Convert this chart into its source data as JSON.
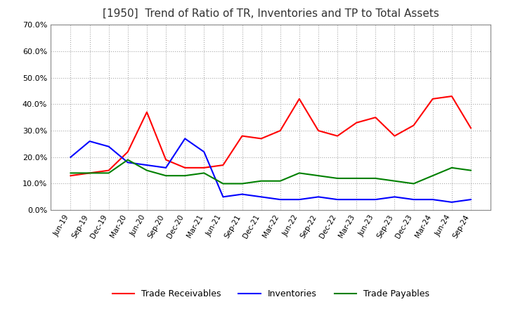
{
  "title": "[1950]  Trend of Ratio of TR, Inventories and TP to Total Assets",
  "x_labels": [
    "Jun-19",
    "Sep-19",
    "Dec-19",
    "Mar-20",
    "Jun-20",
    "Sep-20",
    "Dec-20",
    "Mar-21",
    "Jun-21",
    "Sep-21",
    "Dec-21",
    "Mar-22",
    "Jun-22",
    "Sep-22",
    "Dec-22",
    "Mar-23",
    "Jun-23",
    "Sep-23",
    "Dec-23",
    "Mar-24",
    "Jun-24",
    "Sep-24"
  ],
  "trade_receivables": [
    0.13,
    0.14,
    0.15,
    0.22,
    0.37,
    0.19,
    0.16,
    0.16,
    0.17,
    0.28,
    0.27,
    0.3,
    0.42,
    0.3,
    0.28,
    0.33,
    0.35,
    0.28,
    0.32,
    0.42,
    0.43,
    0.31
  ],
  "inventories": [
    0.2,
    0.26,
    0.24,
    0.18,
    0.17,
    0.16,
    0.27,
    0.22,
    0.05,
    0.06,
    0.05,
    0.04,
    0.04,
    0.05,
    0.04,
    0.04,
    0.04,
    0.05,
    0.04,
    0.04,
    0.03,
    0.04
  ],
  "trade_payables": [
    0.14,
    0.14,
    0.14,
    0.19,
    0.15,
    0.13,
    0.13,
    0.14,
    0.1,
    0.1,
    0.11,
    0.11,
    0.14,
    0.13,
    0.12,
    0.12,
    0.12,
    0.11,
    0.1,
    0.13,
    0.16,
    0.15
  ],
  "tr_color": "#ff0000",
  "inv_color": "#0000ff",
  "tp_color": "#008000",
  "ylim": [
    0.0,
    0.7
  ],
  "yticks": [
    0.0,
    0.1,
    0.2,
    0.3,
    0.4,
    0.5,
    0.6,
    0.7
  ],
  "grid_color": "#aaaaaa",
  "bg_color": "#ffffff",
  "title_fontsize": 11,
  "title_color": "#333333",
  "legend_labels": [
    "Trade Receivables",
    "Inventories",
    "Trade Payables"
  ]
}
